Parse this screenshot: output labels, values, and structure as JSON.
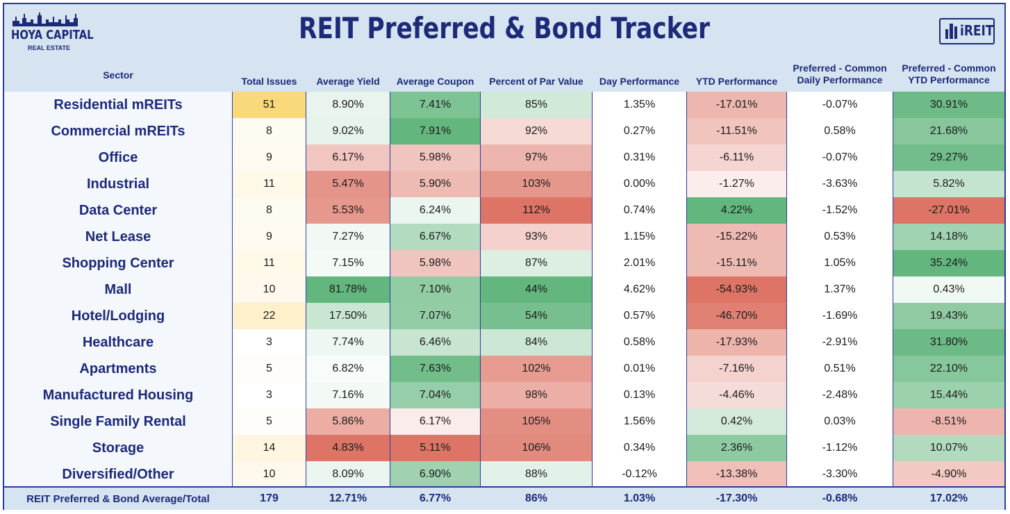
{
  "title": "REIT Preferred & Bond Tracker",
  "logo_left": {
    "line1": "HOYA CAPITAL",
    "line2": "REAL ESTATE"
  },
  "logo_right": {
    "text": "iREIT"
  },
  "colors": {
    "header_bg": "#d6e3f1",
    "title": "#1c2a78",
    "border": "#2a3d9a",
    "green": "#63b67e",
    "red": "#dd7465",
    "gold": "#f9d97c"
  },
  "chart_data": {
    "type": "table",
    "columns": [
      "Sector",
      "Total Issues",
      "Average Yield",
      "Average Coupon",
      "Percent of Par Value",
      "Day Performance",
      "YTD Performance",
      "Preferred - Common Daily Performance",
      "Preferred - Common YTD Performance"
    ],
    "rows": [
      {
        "sector": "Residential mREITs",
        "issues": 51,
        "yield": "8.90%",
        "coupon": "7.41%",
        "par": "85%",
        "day": "1.35%",
        "ytd": "-17.01%",
        "pc_day": "-0.07%",
        "pc_ytd": "30.91%"
      },
      {
        "sector": "Commercial mREITs",
        "issues": 8,
        "yield": "9.02%",
        "coupon": "7.91%",
        "par": "92%",
        "day": "0.27%",
        "ytd": "-11.51%",
        "pc_day": "0.58%",
        "pc_ytd": "21.68%"
      },
      {
        "sector": "Office",
        "issues": 9,
        "yield": "6.17%",
        "coupon": "5.98%",
        "par": "97%",
        "day": "0.31%",
        "ytd": "-6.11%",
        "pc_day": "-0.07%",
        "pc_ytd": "29.27%"
      },
      {
        "sector": "Industrial",
        "issues": 11,
        "yield": "5.47%",
        "coupon": "5.90%",
        "par": "103%",
        "day": "0.00%",
        "ytd": "-1.27%",
        "pc_day": "-3.63%",
        "pc_ytd": "5.82%"
      },
      {
        "sector": "Data Center",
        "issues": 8,
        "yield": "5.53%",
        "coupon": "6.24%",
        "par": "112%",
        "day": "0.74%",
        "ytd": "4.22%",
        "pc_day": "-1.52%",
        "pc_ytd": "-27.01%"
      },
      {
        "sector": "Net Lease",
        "issues": 9,
        "yield": "7.27%",
        "coupon": "6.67%",
        "par": "93%",
        "day": "1.15%",
        "ytd": "-15.22%",
        "pc_day": "0.53%",
        "pc_ytd": "14.18%"
      },
      {
        "sector": "Shopping Center",
        "issues": 11,
        "yield": "7.15%",
        "coupon": "5.98%",
        "par": "87%",
        "day": "2.01%",
        "ytd": "-15.11%",
        "pc_day": "1.05%",
        "pc_ytd": "35.24%"
      },
      {
        "sector": "Mall",
        "issues": 10,
        "yield": "81.78%",
        "coupon": "7.10%",
        "par": "44%",
        "day": "4.62%",
        "ytd": "-54.93%",
        "pc_day": "1.37%",
        "pc_ytd": "0.43%"
      },
      {
        "sector": "Hotel/Lodging",
        "issues": 22,
        "yield": "17.50%",
        "coupon": "7.07%",
        "par": "54%",
        "day": "0.57%",
        "ytd": "-46.70%",
        "pc_day": "-1.69%",
        "pc_ytd": "19.43%"
      },
      {
        "sector": "Healthcare",
        "issues": 3,
        "yield": "7.74%",
        "coupon": "6.46%",
        "par": "84%",
        "day": "0.58%",
        "ytd": "-17.93%",
        "pc_day": "-2.91%",
        "pc_ytd": "31.80%"
      },
      {
        "sector": "Apartments",
        "issues": 5,
        "yield": "6.82%",
        "coupon": "7.63%",
        "par": "102%",
        "day": "0.01%",
        "ytd": "-7.16%",
        "pc_day": "0.51%",
        "pc_ytd": "22.10%"
      },
      {
        "sector": "Manufactured Housing",
        "issues": 3,
        "yield": "7.16%",
        "coupon": "7.04%",
        "par": "98%",
        "day": "0.13%",
        "ytd": "-4.46%",
        "pc_day": "-2.48%",
        "pc_ytd": "15.44%"
      },
      {
        "sector": "Single Family Rental",
        "issues": 5,
        "yield": "5.86%",
        "coupon": "6.17%",
        "par": "105%",
        "day": "1.56%",
        "ytd": "0.42%",
        "pc_day": "0.03%",
        "pc_ytd": "-8.51%"
      },
      {
        "sector": "Storage",
        "issues": 14,
        "yield": "4.83%",
        "coupon": "5.11%",
        "par": "106%",
        "day": "0.34%",
        "ytd": "2.36%",
        "pc_day": "-1.12%",
        "pc_ytd": "10.07%"
      },
      {
        "sector": "Diversified/Other",
        "issues": 10,
        "yield": "8.09%",
        "coupon": "6.90%",
        "par": "88%",
        "day": "-0.12%",
        "ytd": "-13.38%",
        "pc_day": "-3.30%",
        "pc_ytd": "-4.90%"
      }
    ],
    "total": {
      "sector": "REIT Preferred & Bond Average/Total",
      "issues": 179,
      "yield": "12.71%",
      "coupon": "6.77%",
      "par": "86%",
      "day": "1.03%",
      "ytd": "-17.30%",
      "pc_day": "-0.68%",
      "pc_ytd": "17.02%"
    }
  }
}
